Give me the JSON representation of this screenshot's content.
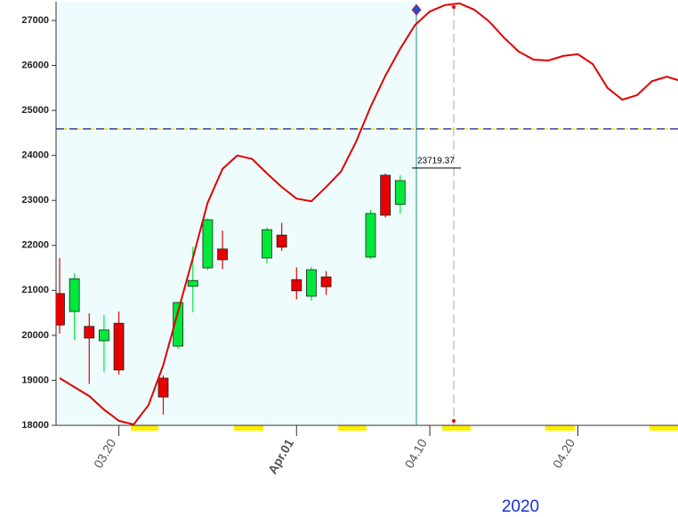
{
  "chart_data": {
    "type": "candlestick",
    "x": [
      "2020-03-16",
      "2020-03-17",
      "2020-03-18",
      "2020-03-19",
      "2020-03-20",
      "2020-03-23",
      "2020-03-24",
      "2020-03-25",
      "2020-03-26",
      "2020-03-27",
      "2020-03-30",
      "2020-03-31",
      "2020-04-01",
      "2020-04-02",
      "2020-04-03",
      "2020-04-06",
      "2020-04-07",
      "2020-04-08"
    ],
    "open": [
      20930,
      20530,
      20200,
      19880,
      20270,
      19050,
      19760,
      21090,
      21500,
      21920,
      21720,
      22230,
      21240,
      20870,
      21300,
      21740,
      23560,
      22910
    ],
    "high": [
      21720,
      21380,
      20490,
      20450,
      20530,
      19110,
      20750,
      21970,
      22600,
      22330,
      22400,
      22500,
      21510,
      21520,
      21430,
      22790,
      23600,
      23560
    ],
    "low": [
      20040,
      19900,
      18920,
      19180,
      19130,
      18240,
      19700,
      20520,
      21450,
      21470,
      21600,
      21880,
      20800,
      20770,
      20900,
      21700,
      22620,
      22700
    ],
    "close": [
      20230,
      21260,
      19940,
      20120,
      19230,
      18630,
      20730,
      21220,
      22570,
      21680,
      22350,
      21960,
      20990,
      21460,
      21080,
      22710,
      22670,
      23440
    ],
    "up_color": "#00e83a",
    "down_color": "#e80000",
    "line": {
      "color": "#e00000",
      "x": [
        "2020-03-16",
        "2020-03-17",
        "2020-03-18",
        "2020-03-19",
        "2020-03-20",
        "2020-03-21",
        "2020-03-22",
        "2020-03-23",
        "2020-03-24",
        "2020-03-25",
        "2020-03-26",
        "2020-03-27",
        "2020-03-28",
        "2020-03-29",
        "2020-03-30",
        "2020-03-31",
        "2020-04-01",
        "2020-04-02",
        "2020-04-03",
        "2020-04-04",
        "2020-04-05",
        "2020-04-06",
        "2020-04-07",
        "2020-04-08",
        "2020-04-09",
        "2020-04-10",
        "2020-04-11",
        "2020-04-12",
        "2020-04-13",
        "2020-04-14",
        "2020-04-15",
        "2020-04-16",
        "2020-04-17",
        "2020-04-18",
        "2020-04-19",
        "2020-04-20",
        "2020-04-21",
        "2020-04-22",
        "2020-04-23",
        "2020-04-24",
        "2020-04-25",
        "2020-04-26",
        "2020-04-27"
      ],
      "values": [
        19050,
        18850,
        18650,
        18350,
        18100,
        18020,
        18450,
        19340,
        20530,
        21720,
        22950,
        23700,
        24000,
        23920,
        23600,
        23300,
        23040,
        22980,
        23300,
        23640,
        24290,
        25080,
        25770,
        26370,
        26900,
        27200,
        27340,
        27380,
        27240,
        26980,
        26620,
        26310,
        26130,
        26110,
        26210,
        26250,
        26030,
        25500,
        25240,
        25340,
        25650,
        25750,
        25650
      ]
    },
    "reference_line": 24590,
    "annotation": 23719.37,
    "xlim": [
      "2020-03-16",
      "2020-04-27"
    ],
    "xticks": [
      {
        "value": "2020-03-20",
        "label": "03.20"
      },
      {
        "value": "2020-04-01",
        "label": "Apr.01"
      },
      {
        "value": "2020-04-10",
        "label": "04.10"
      },
      {
        "value": "2020-04-20",
        "label": "04.20"
      }
    ],
    "ylim": [
      18000,
      27000
    ],
    "yticks": [
      18000,
      19000,
      20000,
      21000,
      22000,
      23000,
      24000,
      25000,
      26000,
      27000
    ],
    "year_label": "2020"
  }
}
